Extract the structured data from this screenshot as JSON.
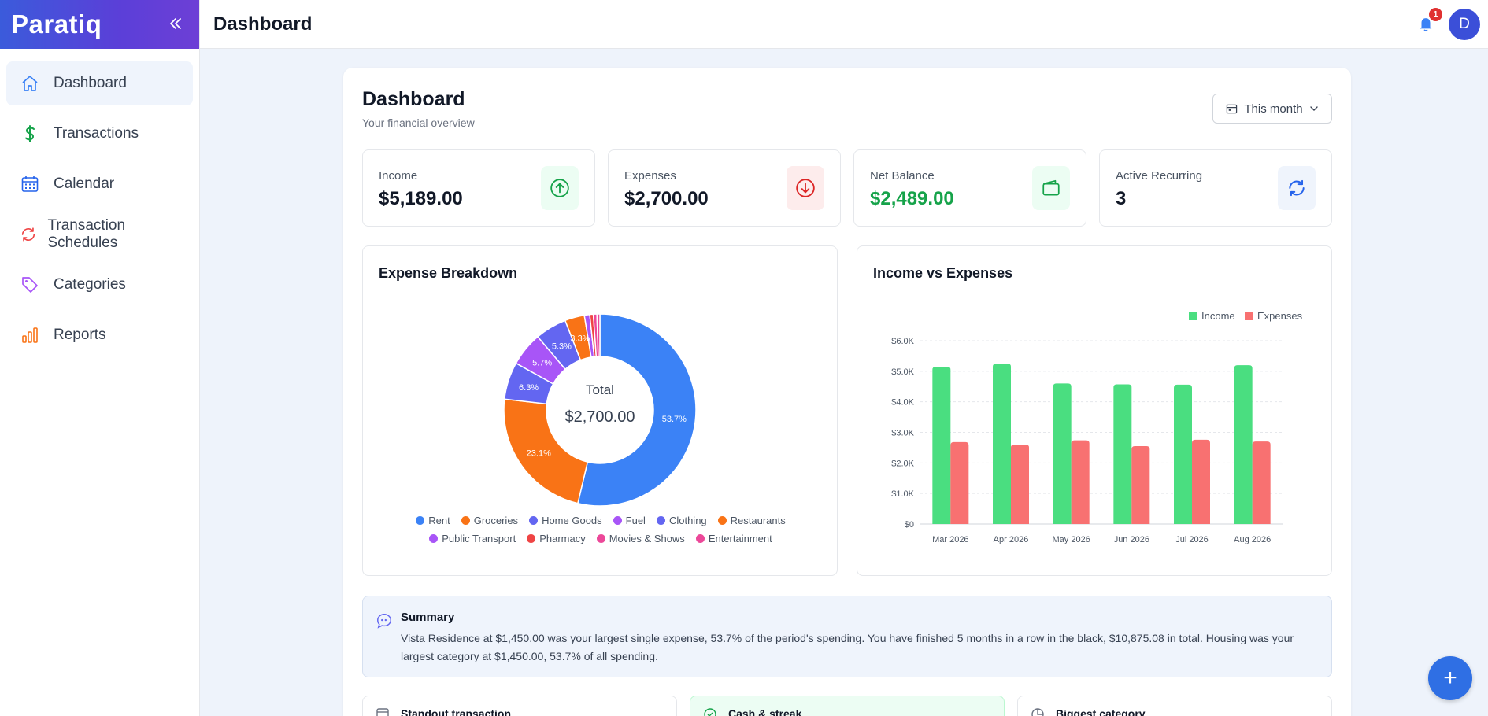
{
  "app": {
    "name": "Paratiq"
  },
  "header": {
    "title": "Dashboard",
    "notification_count": "1",
    "avatar_initial": "D"
  },
  "sidebar": {
    "items": [
      {
        "label": "Dashboard",
        "icon": "home-icon",
        "active": true
      },
      {
        "label": "Transactions",
        "icon": "dollar-icon"
      },
      {
        "label": "Calendar",
        "icon": "calendar-icon"
      },
      {
        "label": "Transaction Schedules",
        "icon": "refresh-icon"
      },
      {
        "label": "Categories",
        "icon": "tag-icon"
      },
      {
        "label": "Reports",
        "icon": "bar-chart-icon"
      }
    ]
  },
  "dashboard": {
    "title": "Dashboard",
    "subtitle": "Your financial overview",
    "period": "This month"
  },
  "stats": [
    {
      "label": "Income",
      "value": "$5,189.00",
      "icon": "arrow-up-icon",
      "color": "#16a34a"
    },
    {
      "label": "Expenses",
      "value": "$2,700.00",
      "icon": "arrow-down-icon",
      "color": "#dc2626"
    },
    {
      "label": "Net Balance",
      "value": "$2,489.00",
      "icon": "wallet-icon",
      "color": "#16a34a"
    },
    {
      "label": "Active Recurring",
      "value": "3",
      "icon": "sync-icon",
      "color": "#2563eb"
    }
  ],
  "expense_panel": {
    "title": "Expense Breakdown",
    "center_label": "Total",
    "center_value": "$2,700.00"
  },
  "income_panel": {
    "title": "Income vs Expenses"
  },
  "chart_data": [
    {
      "type": "pie",
      "categories": [
        "Rent",
        "Groceries",
        "Home Goods",
        "Fuel",
        "Clothing",
        "Restaurants",
        "Public Transport",
        "Pharmacy",
        "Movies & Shows",
        "Entertainment"
      ],
      "values": [
        53.7,
        23.1,
        6.3,
        5.7,
        5.3,
        3.3,
        0.9,
        0.6,
        0.6,
        0.5
      ],
      "slice_labels": [
        "53.7%",
        "23.1%",
        "6.3%",
        "5.7%",
        "5.3%",
        "3.3%",
        "",
        "",
        "",
        ""
      ],
      "colors": [
        "#3b82f6",
        "#f97316",
        "#6366f1",
        "#a855f7",
        "#6366f1",
        "#f97316",
        "#a855f7",
        "#ef4444",
        "#ec4899",
        "#ec4899"
      ],
      "legend": "bottom"
    },
    {
      "type": "bar",
      "categories": [
        "Mar 2026",
        "Apr 2026",
        "May 2026",
        "Jun 2026",
        "Jul 2026",
        "Aug 2026"
      ],
      "series": [
        {
          "name": "Income",
          "values": [
            5150,
            5250,
            4600,
            4570,
            4560,
            5200
          ],
          "color": "#4ade80"
        },
        {
          "name": "Expenses",
          "values": [
            2680,
            2600,
            2740,
            2550,
            2760,
            2700
          ],
          "color": "#f87171"
        }
      ],
      "yticks": [
        "$0",
        "$1.0K",
        "$2.0K",
        "$3.0K",
        "$4.0K",
        "$5.0K",
        "$6.0K"
      ],
      "ylim": [
        0,
        6000
      ],
      "grid": true,
      "legend": "top-right"
    }
  ],
  "summary": {
    "title": "Summary",
    "text": "Vista Residence at $1,450.00 was your largest single expense, 53.7% of the period's spending. You have finished 5 months in a row in the black, $10,875.08 in total. Housing was your largest category at $1,450.00, 53.7% of all spending."
  },
  "bottom_cards": [
    {
      "label": "Standout transaction"
    },
    {
      "label": "Cash & streak"
    },
    {
      "label": "Biggest category"
    }
  ],
  "fab": {
    "label": "+"
  }
}
